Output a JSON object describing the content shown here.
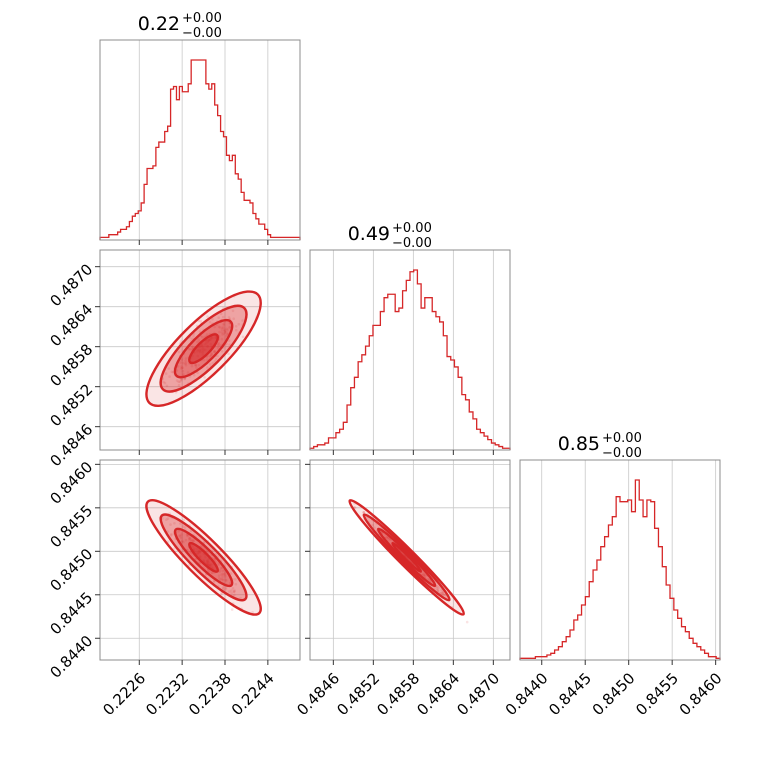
{
  "colors": {
    "series": "#d62728",
    "grid": "#c8c8c8",
    "frame": "#8c8c8c",
    "background": "#ffffff"
  },
  "chart_data": {
    "type": "corner",
    "parameters": [
      {
        "title_value": "0.22",
        "title_upper": "+0.00",
        "title_lower": "−0.00",
        "range": [
          0.22205,
          0.22485
        ],
        "ticks": [
          0.2226,
          0.2232,
          0.2238,
          0.2244
        ],
        "tick_labels": [
          "0.2226",
          "0.2232",
          "0.2238",
          "0.2244"
        ],
        "hist_edges": [
          0.22205,
          0.22485
        ],
        "hist_counts": [
          1,
          1,
          1,
          2,
          2,
          2,
          3,
          4,
          4,
          5,
          7,
          9,
          10,
          11,
          14,
          21,
          27,
          27,
          28,
          35,
          37,
          37,
          41,
          43,
          57,
          58,
          53,
          58,
          56,
          56,
          59,
          68,
          68,
          68,
          68,
          68,
          59,
          57,
          59,
          51,
          47,
          41,
          39,
          32,
          30,
          32,
          25,
          23,
          18,
          15,
          15,
          14,
          10,
          8,
          6,
          6,
          4,
          2,
          1,
          1,
          1,
          1,
          1,
          1,
          1,
          1,
          1,
          1
        ]
      },
      {
        "title_value": "0.49",
        "title_upper": "+0.00",
        "title_lower": "−0.00",
        "range": [
          0.48425,
          0.48725
        ],
        "ticks": [
          0.4846,
          0.4852,
          0.4858,
          0.4864,
          0.487
        ],
        "tick_labels": [
          "0.4846",
          "0.4852",
          "0.4858",
          "0.4864",
          "0.4870"
        ],
        "hist_edges": [
          0.48425,
          0.48725
        ],
        "hist_counts": [
          1,
          2,
          3,
          3,
          4,
          7,
          7,
          10,
          12,
          16,
          26,
          36,
          42,
          51,
          55,
          60,
          66,
          72,
          72,
          80,
          88,
          90,
          90,
          80,
          82,
          92,
          98,
          103,
          104,
          96,
          82,
          88,
          88,
          80,
          77,
          74,
          66,
          54,
          52,
          48,
          42,
          32,
          29,
          22,
          18,
          12,
          10,
          8,
          6,
          4,
          3,
          2,
          1,
          1
        ]
      },
      {
        "title_value": "0.85",
        "title_upper": "+0.00",
        "title_lower": "−0.00",
        "range": [
          0.84375,
          0.84605
        ],
        "ticks": [
          0.844,
          0.8445,
          0.845,
          0.8455,
          0.846
        ],
        "tick_labels": [
          "0.8440",
          "0.8445",
          "0.8450",
          "0.8455",
          "0.8460"
        ],
        "hist_edges": [
          0.84375,
          0.84605
        ],
        "hist_counts": [
          1,
          1,
          1,
          1,
          2,
          2,
          2,
          3,
          4,
          6,
          8,
          11,
          14,
          18,
          24,
          27,
          33,
          38,
          47,
          54,
          60,
          68,
          74,
          81,
          86,
          98,
          95,
          95,
          96,
          89,
          108,
          96,
          86,
          96,
          95,
          79,
          68,
          56,
          45,
          37,
          30,
          25,
          20,
          17,
          13,
          10,
          8,
          6,
          4,
          2,
          2,
          1
        ]
      }
    ],
    "pairs": [
      {
        "x": 0,
        "y": 1,
        "correlation": 0.8
      },
      {
        "x": 0,
        "y": 2,
        "correlation": -0.9
      },
      {
        "x": 1,
        "y": 2,
        "correlation": -0.98
      }
    ]
  }
}
